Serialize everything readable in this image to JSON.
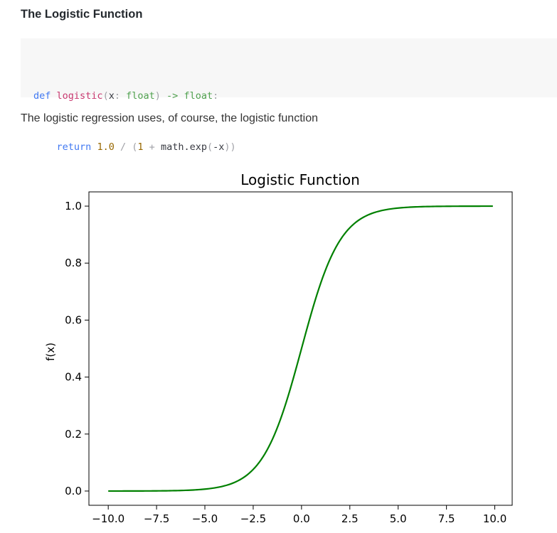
{
  "heading": "The Logistic Function",
  "code": {
    "language": "python",
    "lines": [
      "def logistic(x: float) -> float:",
      "    return 1.0 / (1 + math.exp(-x))"
    ],
    "tokens": {
      "def": "def",
      "fn_name": "logistic",
      "param": "x",
      "type1": "float",
      "arrow": "->",
      "type2": "float",
      "return": "return",
      "one_float": "1.0",
      "one_int": "1",
      "math_exp": "math.exp",
      "neg_x": "-x"
    }
  },
  "paragraph": "The logistic regression uses, of course, the logistic function",
  "chart_data": {
    "type": "line",
    "title": "Logistic Function",
    "xlabel": "",
    "ylabel": "f(x)",
    "function": "1 / (1 + exp(-x))",
    "x_range": [
      -10.0,
      9.9
    ],
    "x_step": 0.1,
    "xlim": [
      -11.0,
      10.9
    ],
    "ylim": [
      -0.05,
      1.05
    ],
    "x_ticks": [
      -10.0,
      -7.5,
      -5.0,
      -2.5,
      0.0,
      2.5,
      5.0,
      7.5,
      10.0
    ],
    "x_tick_labels": [
      "−10.0",
      "−7.5",
      "−5.0",
      "−2.5",
      "0.0",
      "2.5",
      "5.0",
      "7.5",
      "10.0"
    ],
    "y_ticks": [
      0.0,
      0.2,
      0.4,
      0.6,
      0.8,
      1.0
    ],
    "y_tick_labels": [
      "0.0",
      "0.2",
      "0.4",
      "0.6",
      "0.8",
      "1.0"
    ],
    "series": [
      {
        "color": "#008000"
      }
    ],
    "grid": false,
    "legend": "none"
  }
}
